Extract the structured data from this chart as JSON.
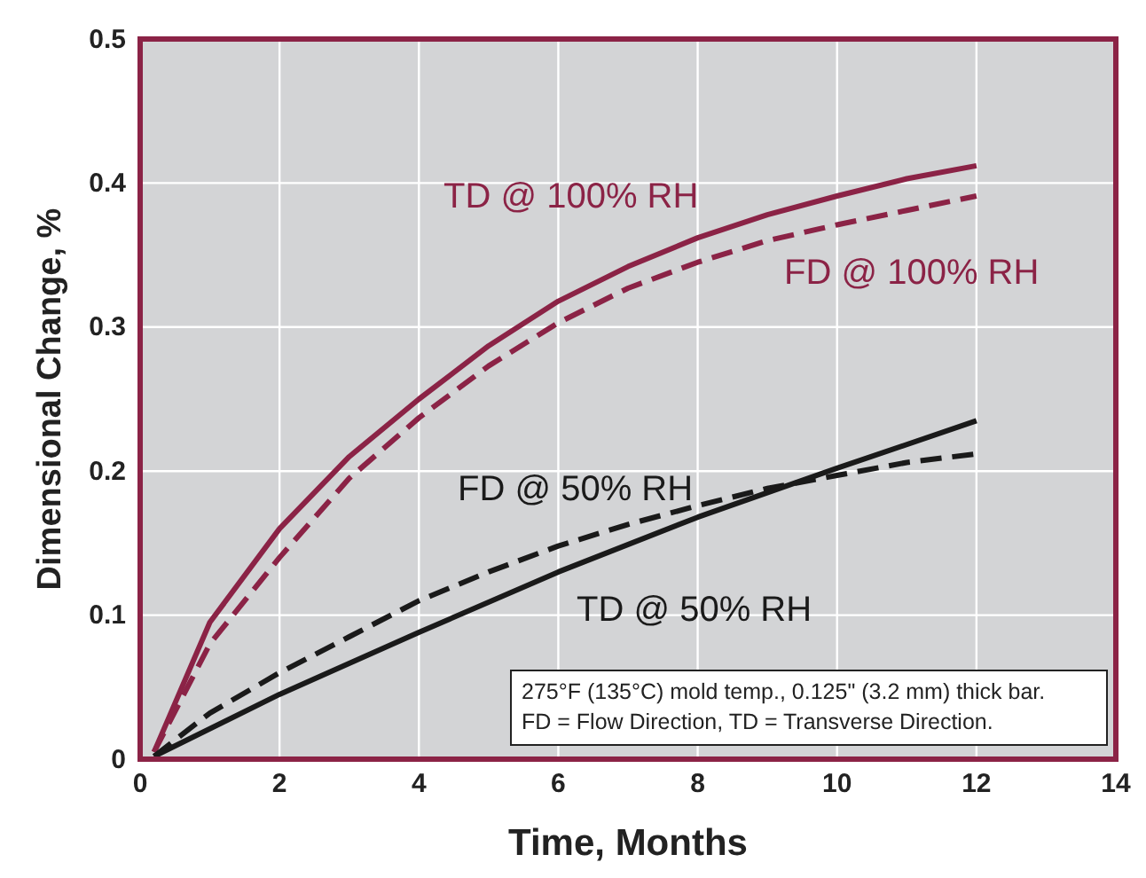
{
  "chart_data": {
    "type": "line",
    "xlabel": "Time, Months",
    "ylabel": "Dimensional Change, %",
    "xlim": [
      0,
      14
    ],
    "xticks": [
      0,
      2,
      4,
      6,
      8,
      10,
      12,
      14
    ],
    "ylim": [
      0,
      0.5
    ],
    "yticks": [
      0,
      0.1,
      0.2,
      0.3,
      0.4,
      0.5
    ],
    "grid": true,
    "marker": "none",
    "series": [
      {
        "name": "TD @ 100% RH",
        "color": "#8b2346",
        "line_style": "solid",
        "x": [
          0.2,
          1,
          2,
          3,
          4,
          5,
          6,
          7,
          8,
          9,
          10,
          11,
          12
        ],
        "values": [
          0.005,
          0.095,
          0.16,
          0.21,
          0.25,
          0.287,
          0.318,
          0.342,
          0.362,
          0.378,
          0.391,
          0.403,
          0.412
        ]
      },
      {
        "name": "FD @ 100% RH",
        "color": "#8b2346",
        "line_style": "dashed",
        "x": [
          0.2,
          1,
          2,
          3,
          4,
          5,
          6,
          7,
          8,
          9,
          10,
          11,
          12
        ],
        "values": [
          0.005,
          0.08,
          0.14,
          0.195,
          0.237,
          0.273,
          0.303,
          0.327,
          0.345,
          0.36,
          0.371,
          0.381,
          0.391
        ]
      },
      {
        "name": "FD @ 50% RH",
        "color": "#1a1a1a",
        "line_style": "dashed",
        "x": [
          0.2,
          1,
          2,
          3,
          4,
          5,
          6,
          7,
          8,
          9,
          10,
          11,
          12
        ],
        "values": [
          0.002,
          0.032,
          0.06,
          0.085,
          0.11,
          0.13,
          0.148,
          0.163,
          0.176,
          0.188,
          0.197,
          0.206,
          0.212
        ]
      },
      {
        "name": "TD @ 50% RH",
        "color": "#1a1a1a",
        "line_style": "solid",
        "x": [
          0.2,
          2,
          4,
          6,
          8,
          10,
          12
        ],
        "values": [
          0.002,
          0.045,
          0.088,
          0.13,
          0.168,
          0.202,
          0.235
        ]
      }
    ],
    "annotations": [
      "275°F (135°C) mold temp., 0.125\" (3.2 mm) thick bar.",
      "FD = Flow Direction, TD = Transverse Direction."
    ]
  }
}
